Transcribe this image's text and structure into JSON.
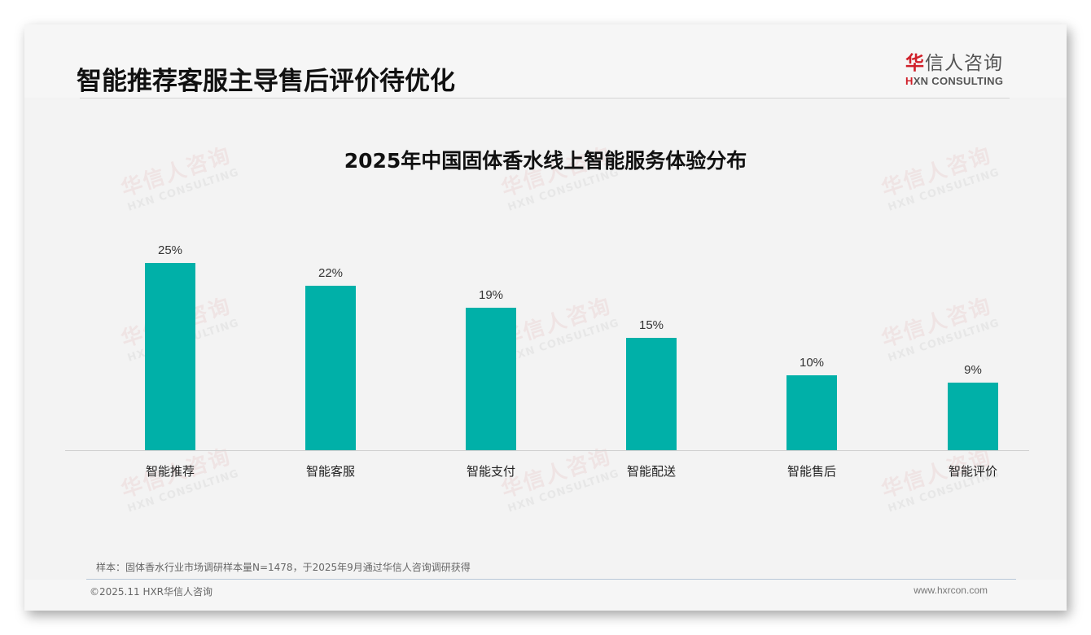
{
  "page": {
    "title": "智能推荐客服主导售后评价待优化"
  },
  "logo": {
    "cn_red": "华",
    "cn_rest": "信人咨询",
    "en_red": "H",
    "en_rest": "XN CONSULTING"
  },
  "watermark": {
    "cn": "华信人咨询",
    "en": "HXN CONSULTING"
  },
  "colors": {
    "bar": "#00b0a8",
    "brand_red": "#d0202a",
    "background": "#f3f3f3"
  },
  "chart_data": {
    "type": "bar",
    "title": "2025年中国固体香水线上智能服务体验分布",
    "categories": [
      "智能推荐",
      "智能客服",
      "智能支付",
      "智能配送",
      "智能售后",
      "智能评价"
    ],
    "values": [
      25,
      22,
      19,
      15,
      10,
      9
    ],
    "value_labels": [
      "25%",
      "22%",
      "19%",
      "15%",
      "10%",
      "9%"
    ],
    "unit": "%",
    "xlabel": "",
    "ylabel": "",
    "ylim": [
      0,
      25
    ],
    "grid": false,
    "legend": null,
    "data_labels": true
  },
  "footer": {
    "note": "样本：固体香水行业市场调研样本量N=1478，于2025年9月通过华信人咨询调研获得",
    "copyright": "©2025.11 HXR华信人咨询",
    "website": "www.hxrcon.com"
  }
}
